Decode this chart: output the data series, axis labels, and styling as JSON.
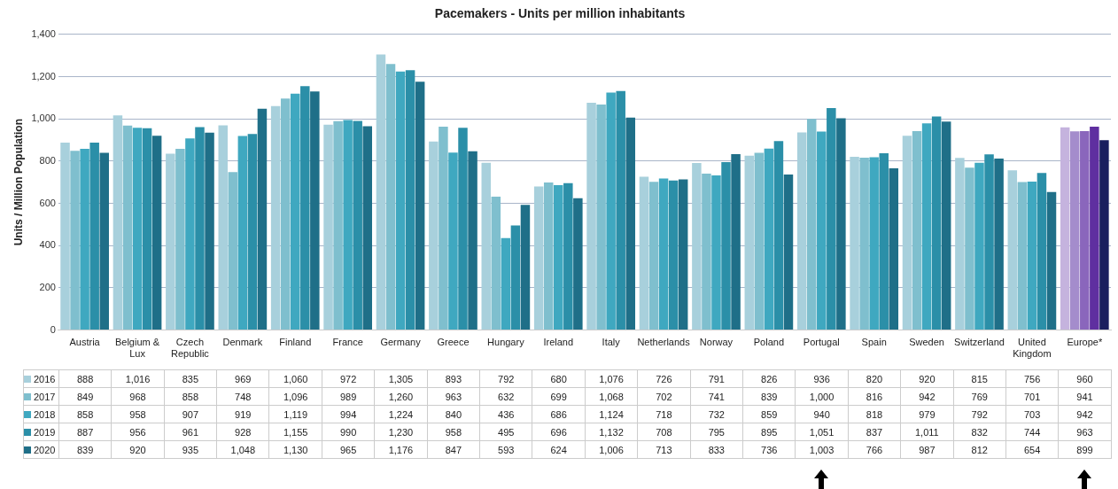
{
  "chart_data": {
    "type": "bar",
    "title": "Pacemakers - Units per million inhabitants",
    "ylabel": "Units / Million Population",
    "categories": [
      "Austria",
      "Belgium & Lux",
      "Czech Republic",
      "Denmark",
      "Finland",
      "France",
      "Germany",
      "Greece",
      "Hungary",
      "Ireland",
      "Italy",
      "Netherlands",
      "Norway",
      "Poland",
      "Portugal",
      "Spain",
      "Sweden",
      "Switzerland",
      "United Kingdom",
      "Europe*"
    ],
    "series": [
      {
        "name": "2016",
        "color": "#a8d0dc",
        "colors": [
          "#a8d0dc",
          "#a8d0dc",
          "#a8d0dc",
          "#a8d0dc",
          "#a8d0dc",
          "#a8d0dc",
          "#a8d0dc",
          "#a8d0dc",
          "#a8d0dc",
          "#a8d0dc",
          "#a8d0dc",
          "#a8d0dc",
          "#a8d0dc",
          "#a8d0dc",
          "#a8d0dc",
          "#a8d0dc",
          "#a8d0dc",
          "#a8d0dc",
          "#a8d0dc",
          "#c5b3de"
        ],
        "values": [
          888,
          1016,
          835,
          969,
          1060,
          972,
          1305,
          893,
          792,
          680,
          1076,
          726,
          791,
          826,
          936,
          820,
          920,
          815,
          756,
          960
        ],
        "value_labels": [
          "888",
          "1,016",
          "835",
          "969",
          "1,060",
          "972",
          "1,305",
          "893",
          "792",
          "680",
          "1,076",
          "726",
          "791",
          "826",
          "936",
          "820",
          "920",
          "815",
          "756",
          "960"
        ]
      },
      {
        "name": "2017",
        "color": "#7fbfce",
        "colors": [
          "#7fbfce",
          "#7fbfce",
          "#7fbfce",
          "#7fbfce",
          "#7fbfce",
          "#7fbfce",
          "#7fbfce",
          "#7fbfce",
          "#7fbfce",
          "#7fbfce",
          "#7fbfce",
          "#7fbfce",
          "#7fbfce",
          "#7fbfce",
          "#7fbfce",
          "#7fbfce",
          "#7fbfce",
          "#7fbfce",
          "#7fbfce",
          "#a48ccc"
        ],
        "values": [
          849,
          968,
          858,
          748,
          1096,
          989,
          1260,
          963,
          632,
          699,
          1068,
          702,
          741,
          839,
          1000,
          816,
          942,
          769,
          701,
          941
        ],
        "value_labels": [
          "849",
          "968",
          "858",
          "748",
          "1,096",
          "989",
          "1,260",
          "963",
          "632",
          "699",
          "1,068",
          "702",
          "741",
          "839",
          "1,000",
          "816",
          "942",
          "769",
          "701",
          "941"
        ]
      },
      {
        "name": "2018",
        "color": "#3fa8c0",
        "colors": [
          "#3fa8c0",
          "#3fa8c0",
          "#3fa8c0",
          "#3fa8c0",
          "#3fa8c0",
          "#3fa8c0",
          "#3fa8c0",
          "#3fa8c0",
          "#3fa8c0",
          "#3fa8c0",
          "#3fa8c0",
          "#3fa8c0",
          "#3fa8c0",
          "#3fa8c0",
          "#3fa8c0",
          "#3fa8c0",
          "#3fa8c0",
          "#3fa8c0",
          "#3fa8c0",
          "#8a66bc"
        ],
        "values": [
          858,
          958,
          907,
          919,
          1119,
          994,
          1224,
          840,
          436,
          686,
          1124,
          718,
          732,
          859,
          940,
          818,
          979,
          792,
          703,
          942
        ],
        "value_labels": [
          "858",
          "958",
          "907",
          "919",
          "1,119",
          "994",
          "1,224",
          "840",
          "436",
          "686",
          "1,124",
          "718",
          "732",
          "859",
          "940",
          "818",
          "979",
          "792",
          "703",
          "942"
        ]
      },
      {
        "name": "2019",
        "color": "#2b8fa8",
        "colors": [
          "#2b8fa8",
          "#2b8fa8",
          "#2b8fa8",
          "#2b8fa8",
          "#2b8fa8",
          "#2b8fa8",
          "#2b8fa8",
          "#2b8fa8",
          "#2b8fa8",
          "#2b8fa8",
          "#2b8fa8",
          "#2b8fa8",
          "#2b8fa8",
          "#2b8fa8",
          "#2b8fa8",
          "#2b8fa8",
          "#2b8fa8",
          "#2b8fa8",
          "#2b8fa8",
          "#5f2fa0"
        ],
        "values": [
          887,
          956,
          961,
          928,
          1155,
          990,
          1230,
          958,
          495,
          696,
          1132,
          708,
          795,
          895,
          1051,
          837,
          1011,
          832,
          744,
          963
        ],
        "value_labels": [
          "887",
          "956",
          "961",
          "928",
          "1,155",
          "990",
          "1,230",
          "958",
          "495",
          "696",
          "1,132",
          "708",
          "795",
          "895",
          "1,051",
          "837",
          "1,011",
          "832",
          "744",
          "963"
        ]
      },
      {
        "name": "2020",
        "color": "#1f6f88",
        "colors": [
          "#1f6f88",
          "#1f6f88",
          "#1f6f88",
          "#1f6f88",
          "#1f6f88",
          "#1f6f88",
          "#1f6f88",
          "#1f6f88",
          "#1f6f88",
          "#1f6f88",
          "#1f6f88",
          "#1f6f88",
          "#1f6f88",
          "#1f6f88",
          "#1f6f88",
          "#1f6f88",
          "#1f6f88",
          "#1f6f88",
          "#1f6f88",
          "#1a1f5e"
        ],
        "values": [
          839,
          920,
          935,
          1048,
          1130,
          965,
          1176,
          847,
          593,
          624,
          1006,
          713,
          833,
          736,
          1003,
          766,
          987,
          812,
          654,
          899
        ],
        "value_labels": [
          "839",
          "920",
          "935",
          "1,048",
          "1,130",
          "965",
          "1,176",
          "847",
          "593",
          "624",
          "1,006",
          "713",
          "833",
          "736",
          "1,003",
          "766",
          "987",
          "812",
          "654",
          "899"
        ]
      }
    ],
    "ylim": [
      0,
      1400
    ],
    "yticks": [
      0,
      200,
      400,
      600,
      800,
      {
        "value": 1000,
        "label": "1,000"
      },
      {
        "value": 1200,
        "label": "1,200"
      },
      {
        "value": 1400,
        "label": "1,400"
      }
    ],
    "grid": "y",
    "legend": "bottom"
  }
}
